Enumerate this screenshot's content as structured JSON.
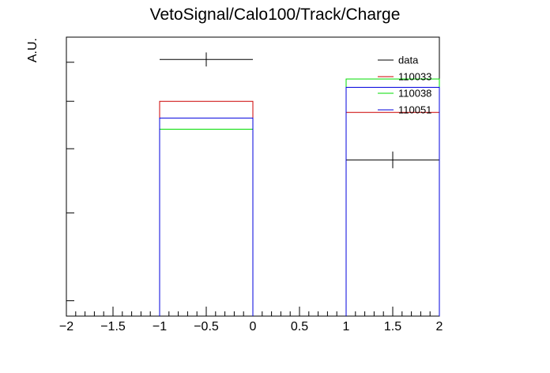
{
  "chart_data": {
    "type": "histogram",
    "title": "VetoSignal/Calo100/Track/Charge",
    "xlabel": "",
    "ylabel": "A.U.",
    "xlim": [
      -2,
      2
    ],
    "ylim": [
      0,
      1
    ],
    "x_ticks": [
      "−2",
      "−1.5",
      "−1",
      "−0.5",
      "0",
      "0.5",
      "1",
      "1.5",
      "2"
    ],
    "x_tick_values": [
      -2,
      -1.5,
      -1,
      -0.5,
      0,
      0.5,
      1,
      1.5,
      2
    ],
    "bins": [
      [
        -1,
        0
      ],
      [
        1,
        2
      ]
    ],
    "legend": {
      "position": "top-right"
    },
    "series": [
      {
        "name": "data",
        "kind": "points",
        "color": "#000000",
        "points": [
          {
            "x": -0.5,
            "y": 0.92,
            "xerr": 0.5,
            "yerr": 0.025
          },
          {
            "x": 1.5,
            "y": 0.56,
            "xerr": 0.5,
            "yerr": 0.03
          }
        ]
      },
      {
        "name": "110033",
        "kind": "step",
        "color": "#cc0000",
        "values": [
          0.77,
          0.73
        ]
      },
      {
        "name": "110038",
        "kind": "step",
        "color": "#00dd00",
        "values": [
          0.67,
          0.85
        ]
      },
      {
        "name": "110051",
        "kind": "step",
        "color": "#0000dd",
        "values": [
          0.71,
          0.82
        ]
      }
    ]
  }
}
